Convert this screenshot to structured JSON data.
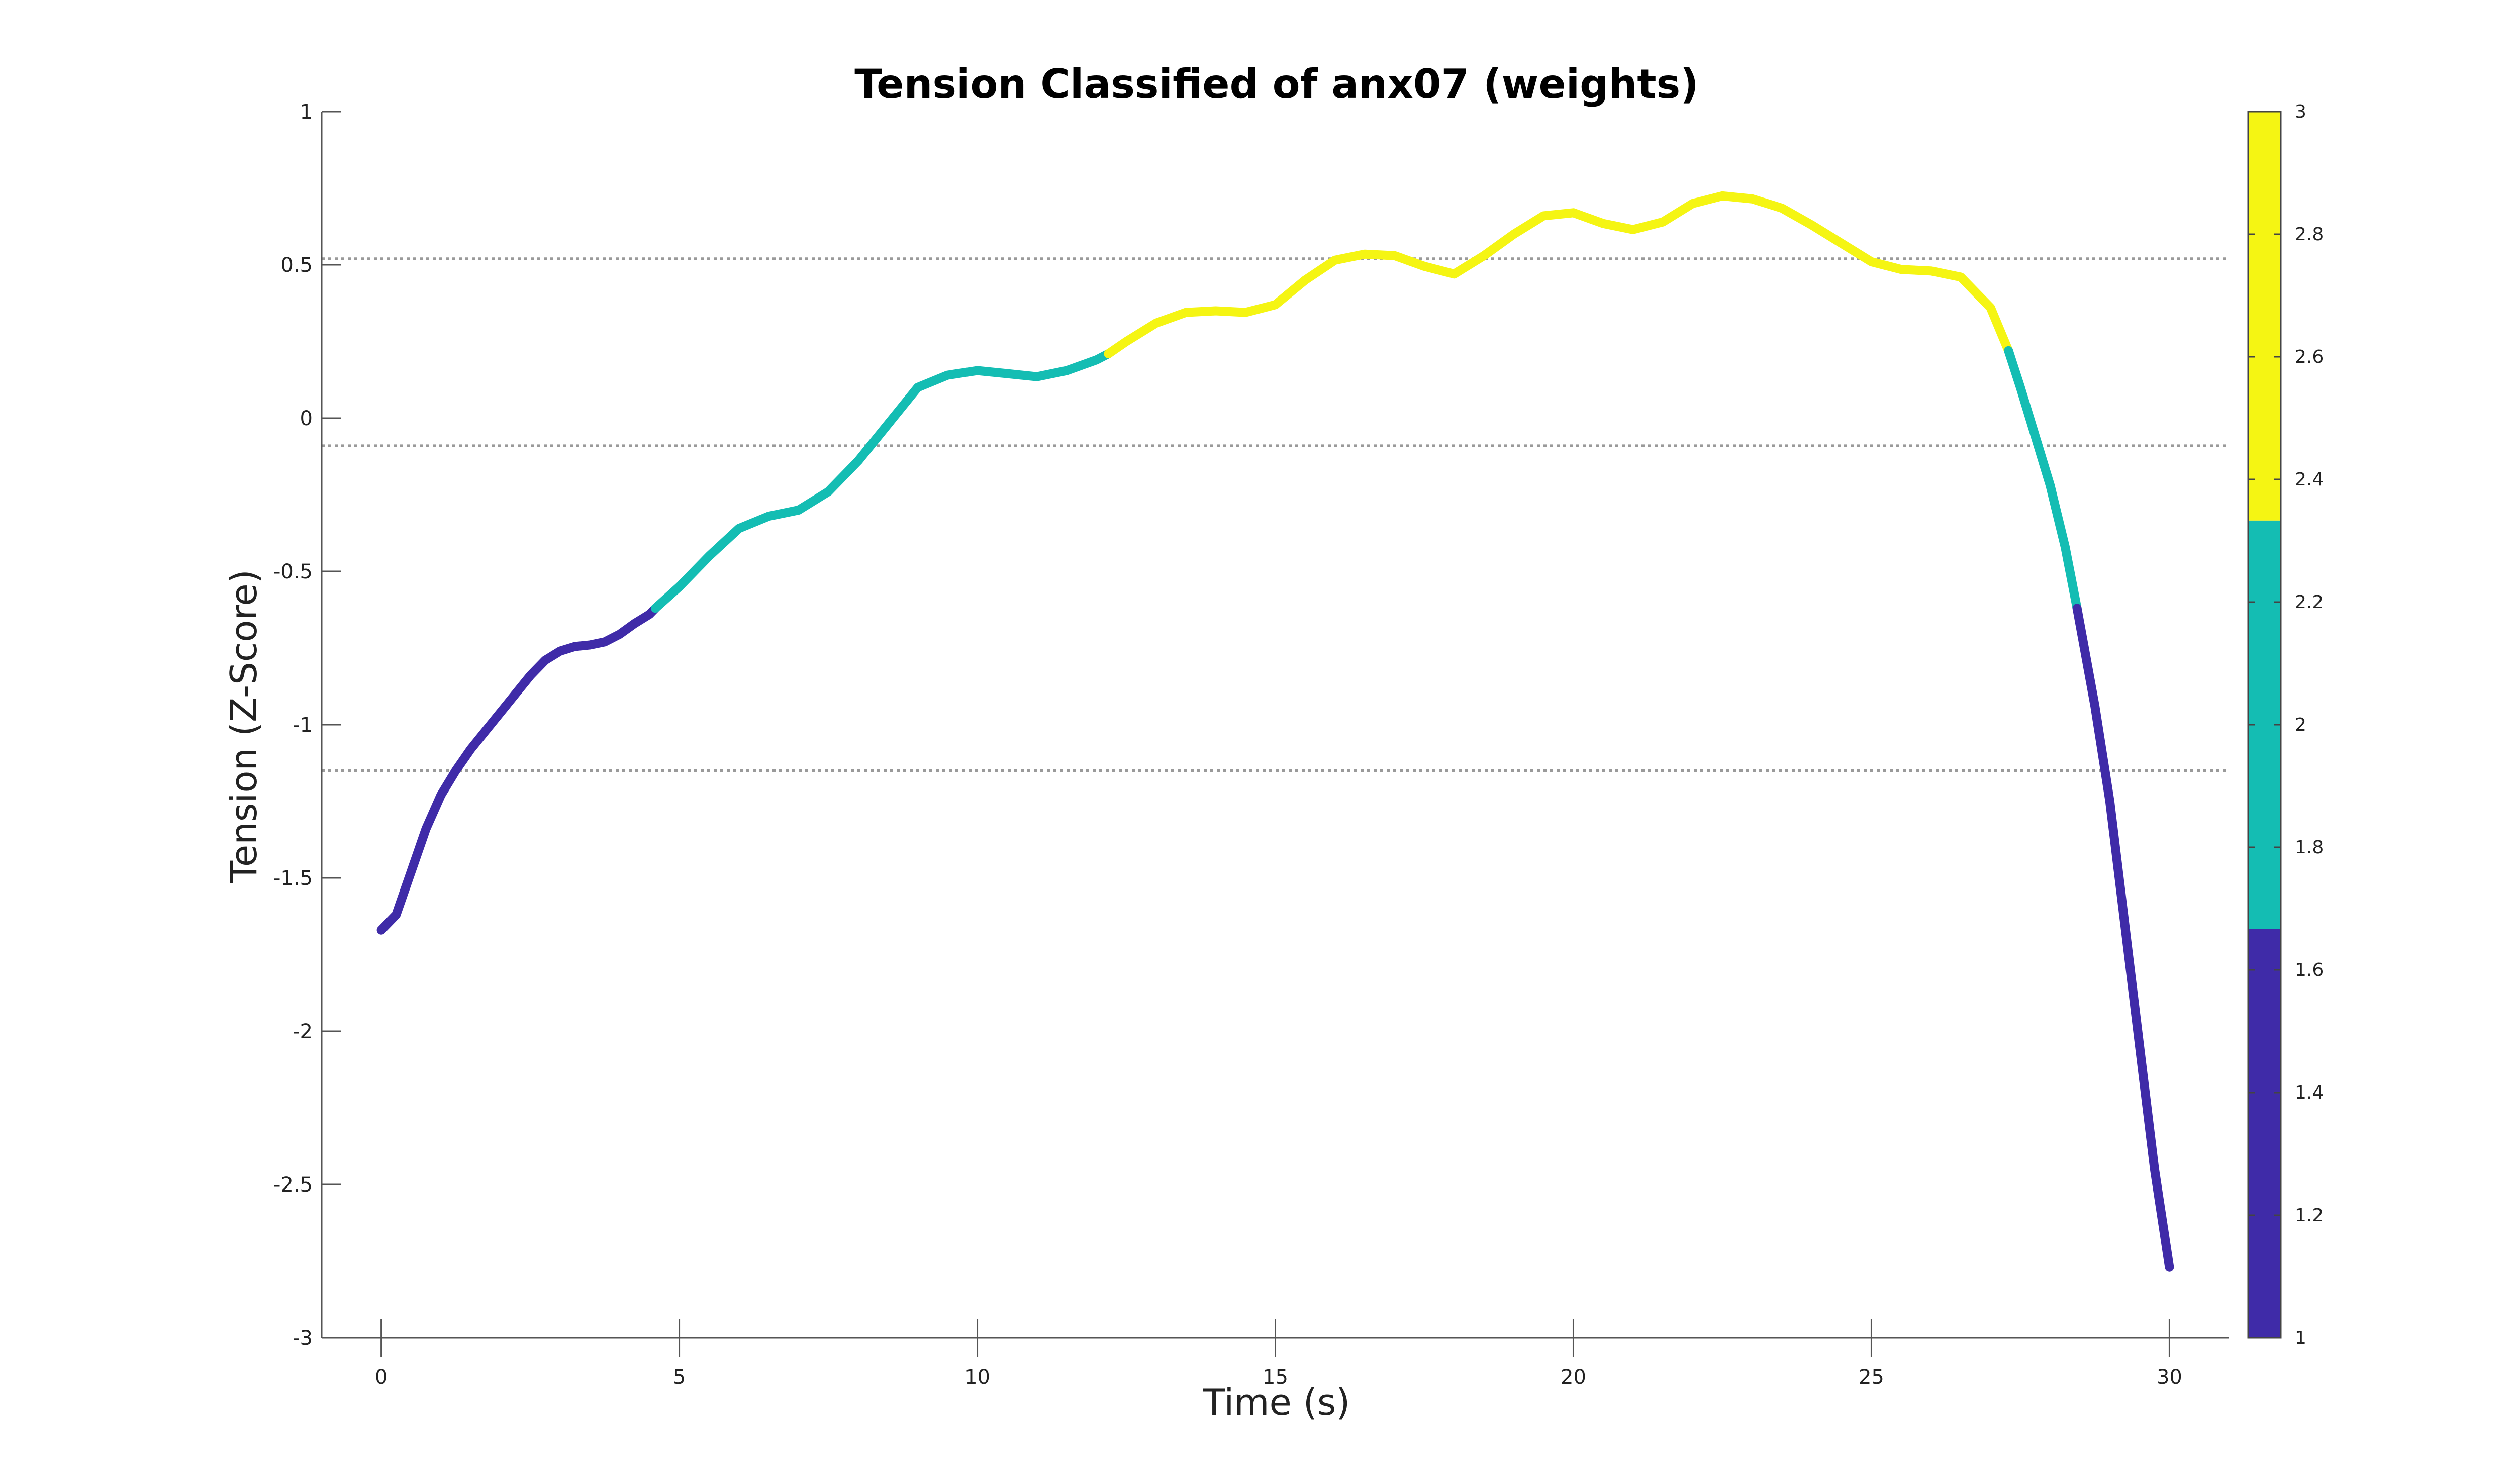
{
  "chart_data": {
    "type": "line",
    "title": "Tension Classified of anx07 (weights)",
    "xlabel": "Time (s)",
    "ylabel": "Tension (Z-Score)",
    "xlim": [
      -1,
      31
    ],
    "ylim": [
      -3,
      1
    ],
    "xticks": [
      0,
      5,
      10,
      15,
      20,
      25,
      30
    ],
    "xtick_labels": [
      "0",
      "5",
      "10",
      "15",
      "20",
      "25",
      "30"
    ],
    "yticks": [
      1,
      0.5,
      0,
      -0.5,
      -1,
      -1.5,
      -2,
      -2.5,
      -3
    ],
    "ytick_labels": [
      "1",
      "0.5",
      "0",
      "-0.5",
      "-1",
      "-1.5",
      "-2",
      "-2.5",
      "-3"
    ],
    "grid": false,
    "threshold_lines": [
      0.52,
      -0.09,
      -1.15
    ],
    "class_colors": {
      "1": "#3f2ba8",
      "2": "#14bdb3",
      "3": "#f5f513"
    },
    "series": [
      {
        "x": [
          0,
          0.25,
          0.5,
          0.75,
          1.0,
          1.25,
          1.5,
          1.75,
          2.0,
          2.25,
          2.5,
          2.75,
          3.0,
          3.25,
          3.5,
          3.75,
          4.0,
          4.25,
          4.5,
          4.6
        ],
        "y": [
          -1.67,
          -1.62,
          -1.48,
          -1.34,
          -1.23,
          -1.15,
          -1.08,
          -1.02,
          -0.96,
          -0.9,
          -0.84,
          -0.79,
          -0.76,
          -0.745,
          -0.74,
          -0.73,
          -0.705,
          -0.67,
          -0.64,
          -0.62
        ],
        "class": 1
      },
      {
        "x": [
          4.6,
          5.0,
          5.5,
          6.0,
          6.5,
          7.0,
          7.5,
          8.0,
          8.5,
          9.0,
          9.5,
          10.0,
          10.5,
          11.0,
          11.5,
          12.0,
          12.2
        ],
        "y": [
          -0.62,
          -0.55,
          -0.45,
          -0.36,
          -0.32,
          -0.3,
          -0.24,
          -0.14,
          -0.02,
          0.1,
          0.14,
          0.155,
          0.145,
          0.135,
          0.155,
          0.19,
          0.21
        ],
        "class": 2
      },
      {
        "x": [
          12.2,
          12.5,
          13.0,
          13.5,
          14.0,
          14.5,
          15.0,
          15.5,
          16.0,
          16.5,
          17.0,
          17.5,
          18.0,
          18.5,
          19.0,
          19.5,
          20.0,
          20.5,
          21.0,
          21.5,
          22.0,
          22.5,
          23.0,
          23.5,
          24.0,
          24.5,
          25.0,
          25.5,
          26.0,
          26.5,
          27.0,
          27.3
        ],
        "y": [
          0.21,
          0.25,
          0.31,
          0.345,
          0.35,
          0.345,
          0.37,
          0.45,
          0.515,
          0.535,
          0.53,
          0.495,
          0.47,
          0.53,
          0.6,
          0.66,
          0.67,
          0.635,
          0.615,
          0.64,
          0.7,
          0.725,
          0.715,
          0.685,
          0.63,
          0.57,
          0.51,
          0.485,
          0.48,
          0.46,
          0.36,
          0.22
        ],
        "class": 3
      },
      {
        "x": [
          27.3,
          27.5,
          27.75,
          28.0,
          28.25,
          28.45
        ],
        "y": [
          0.22,
          0.1,
          -0.06,
          -0.22,
          -0.42,
          -0.62
        ],
        "class": 2
      },
      {
        "x": [
          28.45,
          28.75,
          29.0,
          29.25,
          29.5,
          29.75,
          30.0
        ],
        "y": [
          -0.62,
          -0.94,
          -1.25,
          -1.65,
          -2.05,
          -2.45,
          -2.77
        ],
        "class": 1
      }
    ],
    "colorbar": {
      "range": [
        1,
        3
      ],
      "ticks": [
        3,
        2.8,
        2.6,
        2.4,
        2.2,
        2,
        1.8,
        1.6,
        1.4,
        1.2,
        1
      ],
      "tick_labels": [
        "3",
        "2.8",
        "2.6",
        "2.4",
        "2.2",
        "2",
        "1.8",
        "1.6",
        "1.4",
        "1.2",
        "1"
      ],
      "bands": [
        {
          "from": 1,
          "to": 1.667,
          "color": "#3f2ba8"
        },
        {
          "from": 1.667,
          "to": 2.333,
          "color": "#14bdb3"
        },
        {
          "from": 2.333,
          "to": 3,
          "color": "#f5f513"
        }
      ]
    }
  }
}
